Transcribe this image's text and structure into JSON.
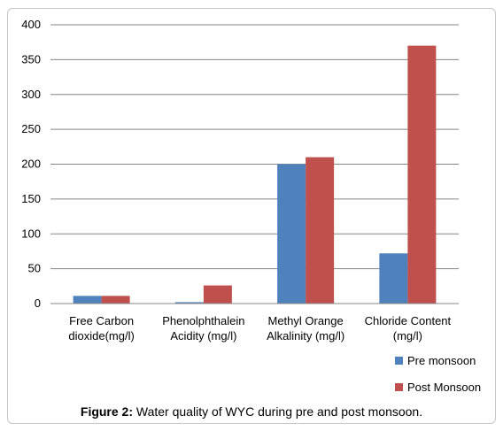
{
  "caption": {
    "label": "Figure 2:",
    "text": " Water quality of WYC during pre and post monsoon."
  },
  "chart_data": {
    "type": "bar",
    "categories": [
      [
        "Free Carbon",
        "dioxide(mg/l)"
      ],
      [
        "Phenolphthalein",
        "Acidity (mg/l)"
      ],
      [
        "Methyl Orange",
        "Alkalinity (mg/l)"
      ],
      [
        "Chloride Content",
        "(mg/l)"
      ]
    ],
    "series": [
      {
        "name": "Pre monsoon",
        "values": [
          11,
          2,
          200,
          72
        ],
        "color": "#4f81bd"
      },
      {
        "name": "Post Monsoon",
        "values": [
          11,
          26,
          210,
          370
        ],
        "color": "#c0504d"
      }
    ],
    "ylim": [
      0,
      400
    ],
    "yticks": [
      0,
      50,
      100,
      150,
      200,
      250,
      300,
      350,
      400
    ],
    "grid": true,
    "legend": "bottom-right"
  }
}
